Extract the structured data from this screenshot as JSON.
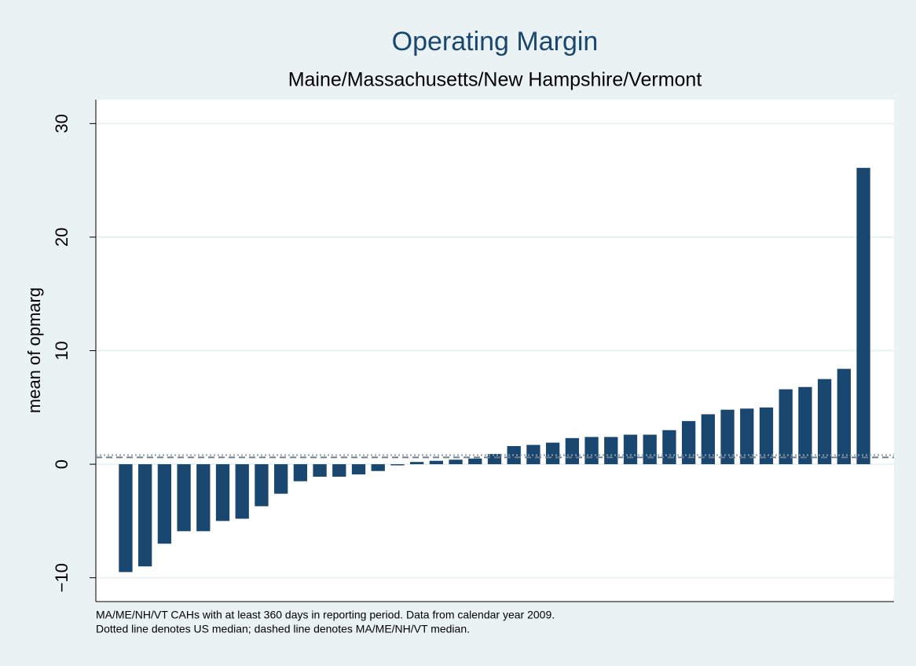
{
  "chart_data": {
    "type": "bar",
    "title": "Operating Margin",
    "subtitle": "Maine/Massachusetts/New Hampshire/Vermont",
    "y_label": "mean of opmarg",
    "notes": [
      "MA/ME/NH/VT CAHs with at least 360 days in reporting period. Data from calendar year 2009.",
      "Dotted line denotes US median; dashed line denotes MA/ME/NH/VT median."
    ],
    "categories": [
      null,
      null,
      null,
      null,
      null,
      null,
      null,
      null,
      null,
      null,
      null,
      null,
      null,
      null,
      null,
      null,
      null,
      null,
      null,
      null,
      null,
      null,
      null,
      null,
      null,
      null,
      null,
      null,
      null,
      null,
      null,
      null,
      null,
      null,
      null,
      null,
      null,
      null,
      null
    ],
    "values": [
      -9.5,
      -9.0,
      -7.0,
      -5.9,
      -5.9,
      -5.0,
      -4.8,
      -3.7,
      -2.6,
      -1.5,
      -1.1,
      -1.1,
      -0.9,
      -0.6,
      -0.1,
      0.2,
      0.3,
      0.4,
      0.5,
      0.9,
      1.6,
      1.7,
      1.9,
      2.3,
      2.4,
      2.4,
      2.6,
      2.6,
      3.0,
      3.8,
      4.4,
      4.8,
      4.9,
      5.0,
      6.6,
      6.8,
      7.5,
      8.4,
      26.1
    ],
    "color": "#1a476f",
    "reference_lines": [
      {
        "value": 0.8,
        "style": "dotted"
      },
      {
        "value": 0.6,
        "style": "dashed"
      }
    ],
    "ylim": [
      -12.1,
      32.1
    ],
    "yticks": [
      {
        "value": -10,
        "label": "−10"
      },
      0,
      10,
      20,
      30
    ],
    "grid": true
  }
}
